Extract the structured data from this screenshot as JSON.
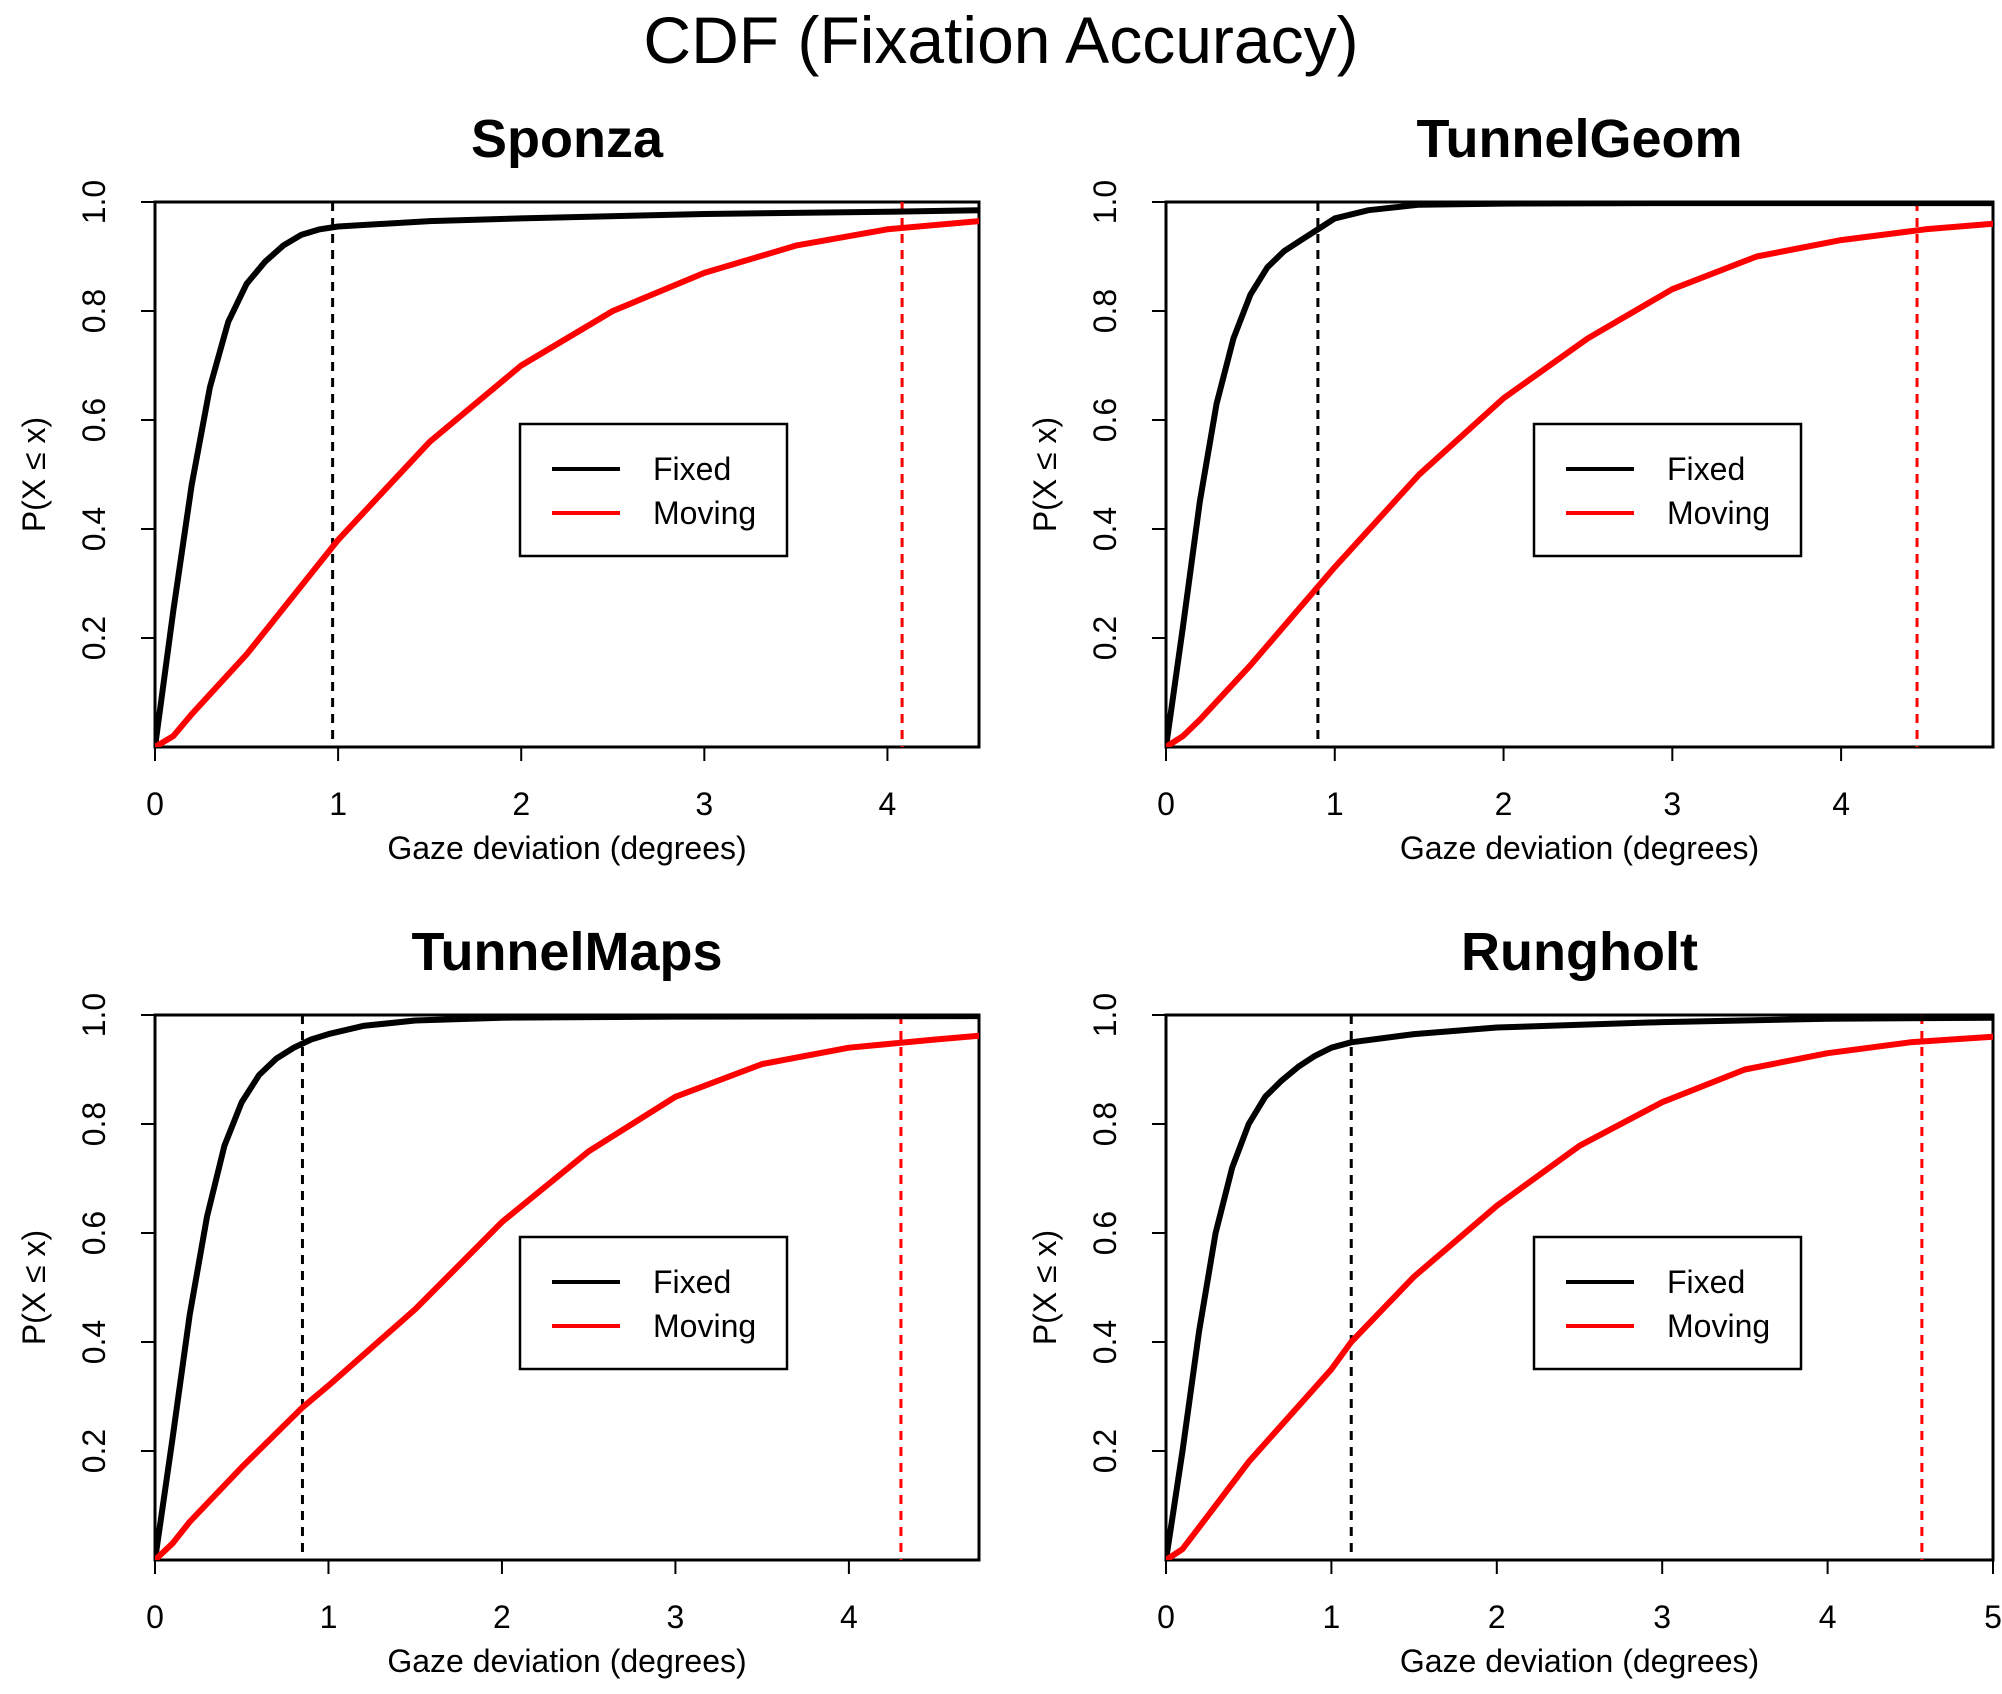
{
  "figure": {
    "title": "CDF (Fixation Accuracy)"
  },
  "colors": {
    "fixed": "#000000",
    "moving": "#ff0000",
    "frame": "#000000"
  },
  "chart_data": [
    {
      "type": "line",
      "title": "Sponza",
      "xlabel": "Gaze deviation (degrees)",
      "ylabel": "P(X ≤ x)",
      "xlim": [
        0,
        4.5
      ],
      "ylim": [
        0,
        1
      ],
      "xticks": [
        "0",
        "1",
        "2",
        "3",
        "4"
      ],
      "yticks": [
        "0.2",
        "0.4",
        "0.6",
        "0.8",
        "1.0"
      ],
      "legend": {
        "position": "bottom-right",
        "entries": [
          "Fixed",
          "Moving"
        ]
      },
      "series": [
        {
          "name": "Fixed",
          "color": "#000000",
          "x": [
            0,
            0.1,
            0.2,
            0.3,
            0.4,
            0.5,
            0.6,
            0.7,
            0.8,
            0.9,
            1.0,
            1.5,
            2.0,
            3.0,
            4.0,
            4.5
          ],
          "y": [
            0,
            0.25,
            0.48,
            0.66,
            0.78,
            0.85,
            0.89,
            0.92,
            0.94,
            0.95,
            0.955,
            0.965,
            0.97,
            0.978,
            0.982,
            0.985
          ]
        },
        {
          "name": "Moving",
          "color": "#ff0000",
          "x": [
            0,
            0.1,
            0.2,
            0.5,
            1.0,
            1.5,
            2.0,
            2.5,
            3.0,
            3.5,
            4.0,
            4.5
          ],
          "y": [
            0,
            0.02,
            0.06,
            0.17,
            0.38,
            0.56,
            0.7,
            0.8,
            0.87,
            0.92,
            0.95,
            0.965
          ]
        }
      ],
      "vlines": [
        {
          "x": 0.97,
          "color": "#000000",
          "style": "dashed"
        },
        {
          "x": 4.08,
          "color": "#ff0000",
          "style": "dashed"
        }
      ]
    },
    {
      "type": "line",
      "title": "TunnelGeom",
      "xlabel": "Gaze deviation (degrees)",
      "ylabel": "P(X ≤ x)",
      "xlim": [
        0,
        4.9
      ],
      "ylim": [
        0,
        1
      ],
      "xticks": [
        "0",
        "1",
        "2",
        "3",
        "4"
      ],
      "yticks": [
        "0.2",
        "0.4",
        "0.6",
        "0.8",
        "1.0"
      ],
      "legend": {
        "position": "bottom-right",
        "entries": [
          "Fixed",
          "Moving"
        ]
      },
      "series": [
        {
          "name": "Fixed",
          "color": "#000000",
          "x": [
            0,
            0.1,
            0.2,
            0.3,
            0.4,
            0.5,
            0.6,
            0.7,
            0.8,
            0.9,
            1.0,
            1.2,
            1.5,
            2.0,
            3.0,
            4.9
          ],
          "y": [
            0,
            0.22,
            0.45,
            0.63,
            0.75,
            0.83,
            0.88,
            0.91,
            0.93,
            0.95,
            0.97,
            0.985,
            0.995,
            0.997,
            0.998,
            0.998
          ]
        },
        {
          "name": "Moving",
          "color": "#ff0000",
          "x": [
            0,
            0.1,
            0.2,
            0.5,
            1.0,
            1.5,
            2.0,
            2.5,
            3.0,
            3.5,
            4.0,
            4.5,
            4.9
          ],
          "y": [
            0,
            0.02,
            0.05,
            0.15,
            0.33,
            0.5,
            0.64,
            0.75,
            0.84,
            0.9,
            0.93,
            0.95,
            0.96
          ]
        }
      ],
      "vlines": [
        {
          "x": 0.9,
          "color": "#000000",
          "style": "dashed"
        },
        {
          "x": 4.45,
          "color": "#ff0000",
          "style": "dashed"
        }
      ]
    },
    {
      "type": "line",
      "title": "TunnelMaps",
      "xlabel": "Gaze deviation (degrees)",
      "ylabel": "P(X ≤ x)",
      "xlim": [
        0,
        4.75
      ],
      "ylim": [
        0,
        1
      ],
      "xticks": [
        "0",
        "1",
        "2",
        "3",
        "4"
      ],
      "yticks": [
        "0.2",
        "0.4",
        "0.6",
        "0.8",
        "1.0"
      ],
      "legend": {
        "position": "bottom-right",
        "entries": [
          "Fixed",
          "Moving"
        ]
      },
      "series": [
        {
          "name": "Fixed",
          "color": "#000000",
          "x": [
            0,
            0.1,
            0.2,
            0.3,
            0.4,
            0.5,
            0.6,
            0.7,
            0.8,
            0.9,
            1.0,
            1.2,
            1.5,
            2.0,
            3.0,
            4.75
          ],
          "y": [
            0,
            0.22,
            0.45,
            0.63,
            0.76,
            0.84,
            0.89,
            0.92,
            0.94,
            0.955,
            0.965,
            0.98,
            0.99,
            0.995,
            0.997,
            0.998
          ]
        },
        {
          "name": "Moving",
          "color": "#ff0000",
          "x": [
            0,
            0.1,
            0.2,
            0.5,
            0.85,
            1.0,
            1.5,
            2.0,
            2.5,
            3.0,
            3.5,
            4.0,
            4.5,
            4.75
          ],
          "y": [
            0,
            0.03,
            0.07,
            0.17,
            0.28,
            0.32,
            0.46,
            0.62,
            0.75,
            0.85,
            0.91,
            0.94,
            0.955,
            0.962
          ]
        }
      ],
      "vlines": [
        {
          "x": 0.85,
          "color": "#000000",
          "style": "dashed"
        },
        {
          "x": 4.3,
          "color": "#ff0000",
          "style": "dashed"
        }
      ]
    },
    {
      "type": "line",
      "title": "Rungholt",
      "xlabel": "Gaze deviation (degrees)",
      "ylabel": "P(X ≤ x)",
      "xlim": [
        0,
        5
      ],
      "ylim": [
        0,
        1
      ],
      "xticks": [
        "0",
        "1",
        "2",
        "3",
        "4",
        "5"
      ],
      "yticks": [
        "0.2",
        "0.4",
        "0.6",
        "0.8",
        "1.0"
      ],
      "legend": {
        "position": "bottom-right",
        "entries": [
          "Fixed",
          "Moving"
        ]
      },
      "series": [
        {
          "name": "Fixed",
          "color": "#000000",
          "x": [
            0,
            0.1,
            0.2,
            0.3,
            0.4,
            0.5,
            0.6,
            0.7,
            0.8,
            0.9,
            1.0,
            1.12,
            1.5,
            2.0,
            3.0,
            4.0,
            5.0
          ],
          "y": [
            0,
            0.2,
            0.42,
            0.6,
            0.72,
            0.8,
            0.85,
            0.88,
            0.905,
            0.925,
            0.94,
            0.95,
            0.965,
            0.977,
            0.987,
            0.993,
            0.995
          ]
        },
        {
          "name": "Moving",
          "color": "#ff0000",
          "x": [
            0,
            0.1,
            0.2,
            0.5,
            1.0,
            1.12,
            1.5,
            2.0,
            2.5,
            3.0,
            3.5,
            4.0,
            4.5,
            5.0
          ],
          "y": [
            0,
            0.02,
            0.06,
            0.18,
            0.35,
            0.4,
            0.52,
            0.65,
            0.76,
            0.84,
            0.9,
            0.93,
            0.95,
            0.96
          ]
        }
      ],
      "vlines": [
        {
          "x": 1.12,
          "color": "#000000",
          "style": "dashed"
        },
        {
          "x": 4.57,
          "color": "#ff0000",
          "style": "dashed"
        }
      ]
    }
  ]
}
